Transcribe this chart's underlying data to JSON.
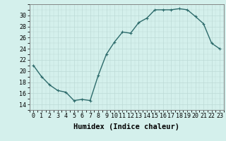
{
  "x": [
    0,
    1,
    2,
    3,
    4,
    5,
    6,
    7,
    8,
    9,
    10,
    11,
    12,
    13,
    14,
    15,
    16,
    17,
    18,
    19,
    20,
    21,
    22,
    23
  ],
  "y": [
    21,
    19,
    17.5,
    16.5,
    16.2,
    14.7,
    14.9,
    14.7,
    19.2,
    23,
    25.2,
    27,
    26.8,
    28.7,
    29.5,
    31,
    31,
    31,
    31.2,
    31,
    29.8,
    28.5,
    25,
    24
  ],
  "line_color": "#2d6b6b",
  "marker": "+",
  "marker_size": 3,
  "bg_color": "#d4f0ec",
  "grid_color": "#bcdad6",
  "xlabel": "Humidex (Indice chaleur)",
  "ylim": [
    13,
    32
  ],
  "xlim": [
    -0.5,
    23.5
  ],
  "yticks": [
    14,
    16,
    18,
    20,
    22,
    24,
    26,
    28,
    30
  ],
  "xticks": [
    0,
    1,
    2,
    3,
    4,
    5,
    6,
    7,
    8,
    9,
    10,
    11,
    12,
    13,
    14,
    15,
    16,
    17,
    18,
    19,
    20,
    21,
    22,
    23
  ],
  "tick_fontsize": 6,
  "label_fontsize": 7.5,
  "line_width": 1.0
}
